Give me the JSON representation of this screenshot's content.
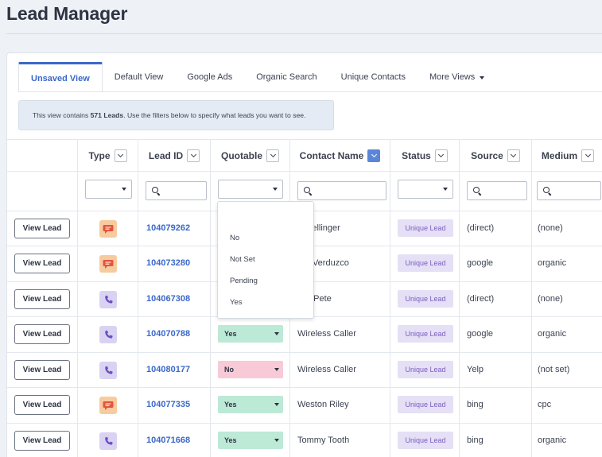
{
  "page_title": "Lead Manager",
  "tabs": [
    {
      "label": "Unsaved View",
      "active": true
    },
    {
      "label": "Default View",
      "active": false
    },
    {
      "label": "Google Ads",
      "active": false
    },
    {
      "label": "Organic Search",
      "active": false
    },
    {
      "label": "Unique Contacts",
      "active": false
    },
    {
      "label": "More Views",
      "active": false
    }
  ],
  "notice": {
    "prefix": "This view contains ",
    "count": "571 Leads",
    "suffix": ". Use the filters below to specify what leads you want to see."
  },
  "columns": [
    "Type",
    "Lead ID",
    "Quotable",
    "Contact Name",
    "Status",
    "Source",
    "Medium"
  ],
  "view_label": "View Lead",
  "quotable_dropdown": {
    "options": [
      "",
      "No",
      "Not Set",
      "Pending",
      "Yes"
    ]
  },
  "rows": [
    {
      "type": "chat",
      "lead_id": "104079262",
      "quotable": "",
      "contact": "a Mellinger",
      "status": "Unique Lead",
      "source": "(direct)",
      "medium": "(none)"
    },
    {
      "type": "chat",
      "lead_id": "104073280",
      "quotable": "",
      "contact": "rah Verduzco",
      "status": "Unique Lead",
      "source": "google",
      "medium": "organic"
    },
    {
      "type": "phone",
      "lead_id": "104067308",
      "quotable": "",
      "contact": "ess Pete",
      "status": "Unique Lead",
      "source": "(direct)",
      "medium": "(none)"
    },
    {
      "type": "phone",
      "lead_id": "104070788",
      "quotable": "Yes",
      "contact": "Wireless Caller",
      "status": "Unique Lead",
      "source": "google",
      "medium": "organic"
    },
    {
      "type": "phone",
      "lead_id": "104080177",
      "quotable": "No",
      "contact": "Wireless Caller",
      "status": "Unique Lead",
      "source": "Yelp",
      "medium": "(not set)"
    },
    {
      "type": "chat",
      "lead_id": "104077335",
      "quotable": "Yes",
      "contact": "Weston Riley",
      "status": "Unique Lead",
      "source": "bing",
      "medium": "cpc"
    },
    {
      "type": "phone",
      "lead_id": "104071668",
      "quotable": "Yes",
      "contact": "Tommy Tooth",
      "status": "Unique Lead",
      "source": "bing",
      "medium": "organic"
    }
  ],
  "colors": {
    "accent": "#3a68c9",
    "yes": "#bde9d7",
    "no": "#f8c9d6",
    "status_bg": "#e5e0f5",
    "status_text": "#7b5cc4"
  },
  "icons": {
    "chat": "chat-bubble-icon",
    "phone": "phone-icon"
  }
}
